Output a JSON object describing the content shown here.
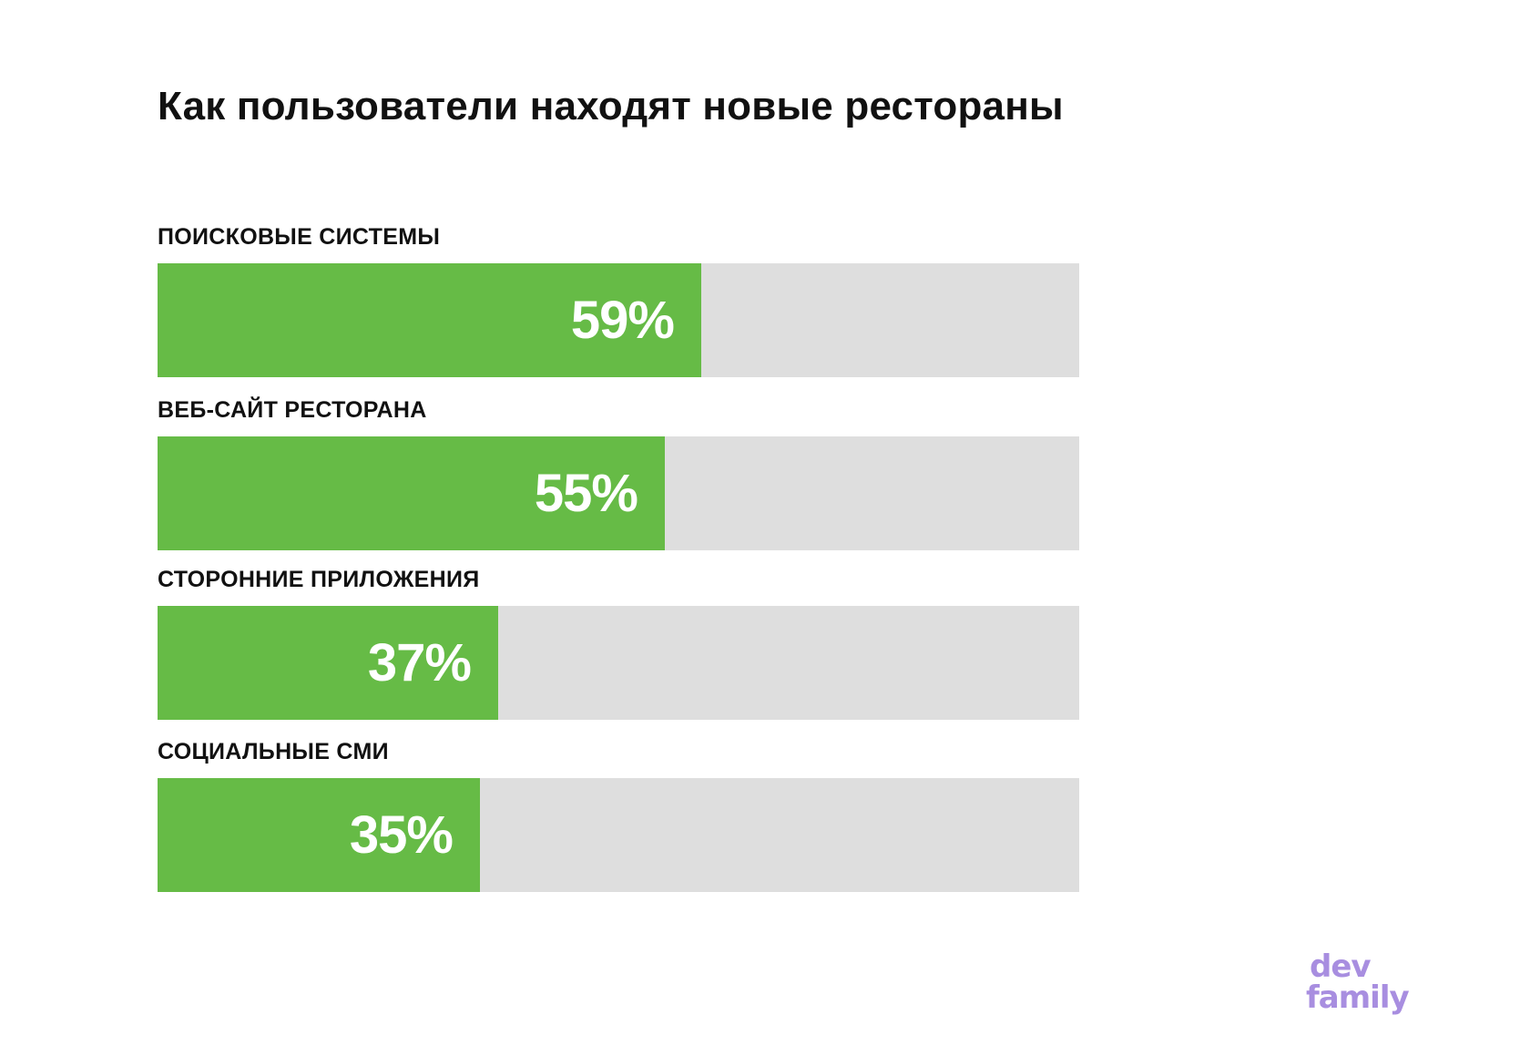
{
  "title": "Как пользователи находят новые рестораны",
  "colors": {
    "bar_fill": "#66bb46",
    "bar_track": "#dedede",
    "logo": "#a88ee0"
  },
  "chart_data": {
    "type": "bar",
    "orientation": "horizontal",
    "title": "Как пользователи находят новые рестораны",
    "categories": [
      "ПОИСКОВЫЕ СИСТЕМЫ",
      "ВЕБ-САЙТ РЕСТОРАНА",
      "СТОРОННИЕ ПРИЛОЖЕНИЯ",
      "СОЦИАЛЬНЫЕ СМИ"
    ],
    "values": [
      59,
      55,
      37,
      35
    ],
    "value_labels": [
      "59%",
      "55%",
      "37%",
      "35%"
    ],
    "xlim": [
      0,
      100
    ],
    "grid": false,
    "legend": "none"
  },
  "logo": {
    "line1": "dev",
    "line2": "family"
  }
}
